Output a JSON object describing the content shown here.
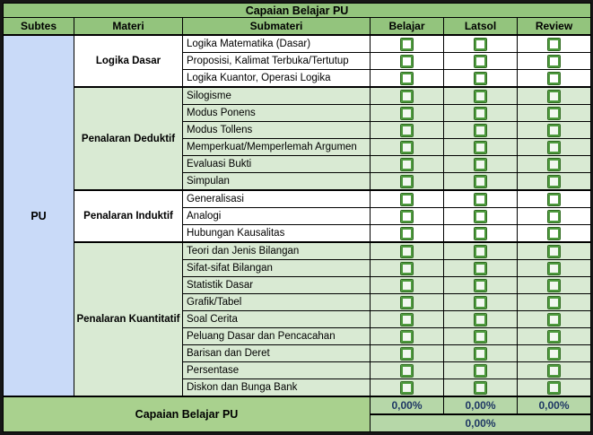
{
  "title": "Capaian Belajar PU",
  "columns": [
    "Subtes",
    "Materi",
    "Submateri",
    "Belajar",
    "Latsol",
    "Review"
  ],
  "subtes": "PU",
  "checkbox_columns": [
    "Belajar",
    "Latsol",
    "Review"
  ],
  "checkboxes_checked": false,
  "groups": [
    {
      "materi": "Logika Dasar",
      "submateri": [
        "Logika Matematika (Dasar)",
        "Proposisi, Kalimat Terbuka/Tertutup",
        "Logika Kuantor, Operasi Logika"
      ]
    },
    {
      "materi": "Penalaran Deduktif",
      "submateri": [
        "Silogisme",
        "Modus Ponens",
        "Modus Tollens",
        "Memperkuat/Memperlemah Argumen",
        "Evaluasi Bukti",
        "Simpulan"
      ]
    },
    {
      "materi": "Penalaran Induktif",
      "submateri": [
        "Generalisasi",
        "Analogi",
        "Hubungan Kausalitas"
      ]
    },
    {
      "materi": "Penalaran Kuantitatif",
      "submateri": [
        "Teori dan Jenis Bilangan",
        "Sifat-sifat Bilangan",
        "Statistik Dasar",
        "Grafik/Tabel",
        "Soal Cerita",
        "Peluang Dasar dan Pencacahan",
        "Barisan dan Deret",
        "Persentase",
        "Diskon dan Bunga Bank"
      ]
    }
  ],
  "footer": {
    "label": "Capaian Belajar PU",
    "belajar_pct": "0,00%",
    "latsol_pct": "0,00%",
    "review_pct": "0,00%",
    "overall_pct": "0,00%"
  },
  "colors": {
    "header_green": "#93c47d",
    "shaded_row_green": "#d9ead3",
    "subtes_blue": "#c9daf8",
    "footer_green": "#a9d18e",
    "footer_pct_green": "#b6d7a8",
    "checkbox_green": "#4e9a3e",
    "pct_text_navy": "#1f3864"
  }
}
